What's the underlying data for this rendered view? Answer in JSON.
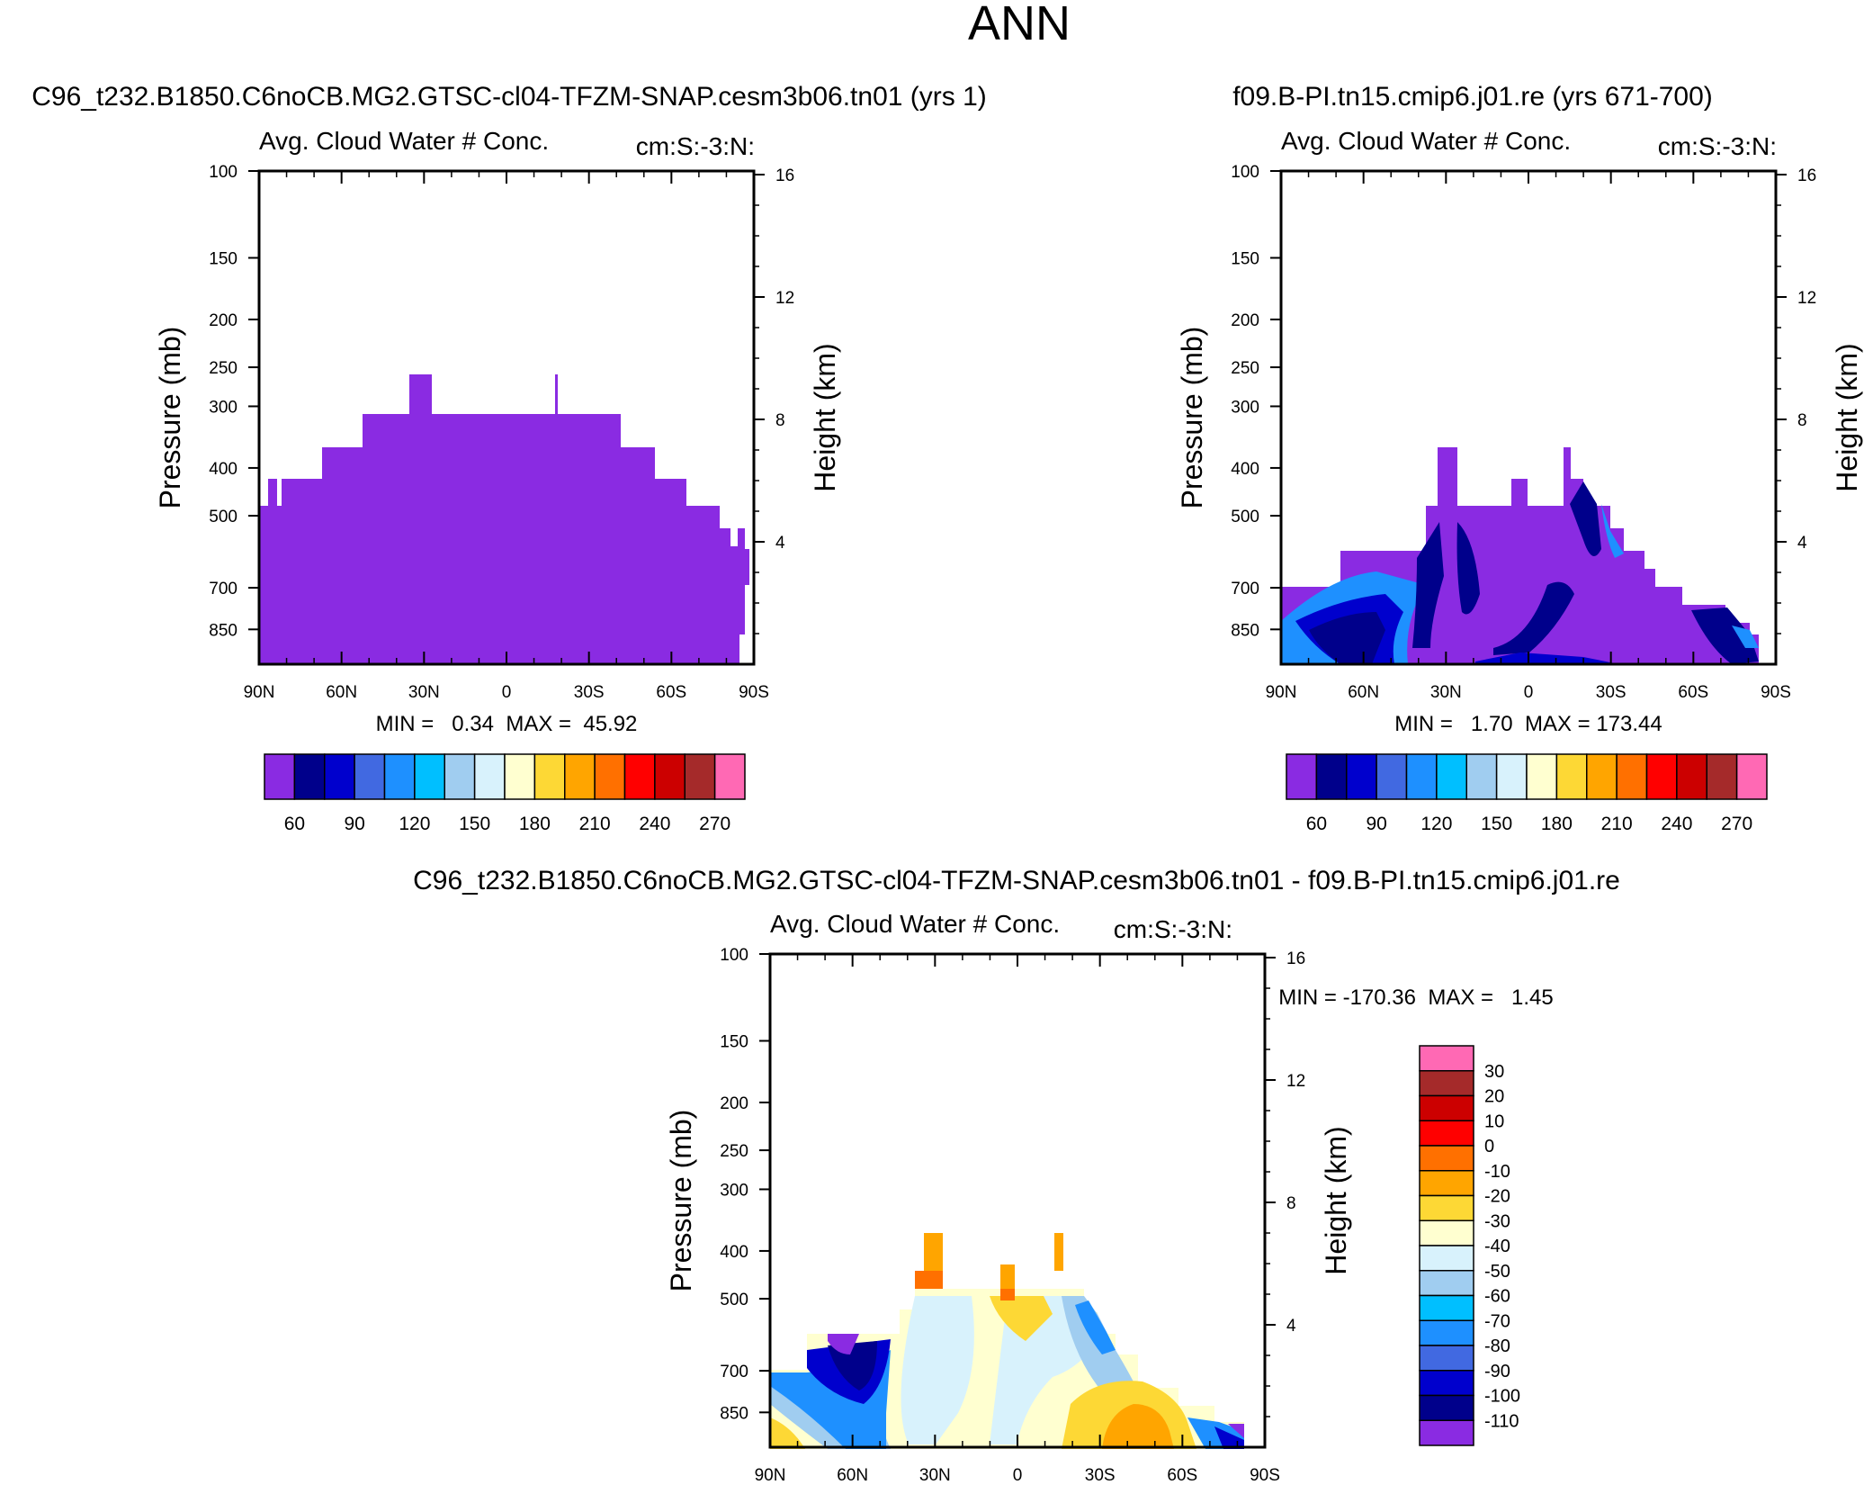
{
  "title": "ANN",
  "chart_data": [
    {
      "type": "heatmap",
      "case": "C96_t232.B1850.C6noCB.MG2.GTSC-cl04-TFZM-SNAP.cesm3b06.tn01 (yrs 1)",
      "variable": "Avg. Cloud Water # Conc.",
      "units": "cm:S:-3:N:",
      "ylabel": "Pressure (mb)",
      "ylabel_right": "Height (km)",
      "x_ticks": [
        "90N",
        "60N",
        "30N",
        "0",
        "30S",
        "60S",
        "90S"
      ],
      "x_values": [
        90,
        60,
        30,
        0,
        -30,
        -60,
        -90
      ],
      "y_ticks": [
        "100",
        "150",
        "200",
        "250",
        "300",
        "400",
        "500",
        "700",
        "850"
      ],
      "y_values": [
        100,
        150,
        200,
        250,
        300,
        400,
        500,
        700,
        850
      ],
      "ylim": [
        100,
        1000
      ],
      "height_ticks": [
        "16",
        "12",
        "8",
        "4"
      ],
      "height_values": [
        16,
        12,
        8,
        4
      ],
      "min_label": "MIN =   0.34  MAX =  45.92",
      "min": 0.34,
      "max": 45.92,
      "colorbar_labels": [
        "60",
        "90",
        "120",
        "150",
        "180",
        "210",
        "240",
        "270"
      ],
      "colorbar_colors": [
        "#8a2be2",
        "#00008b",
        "#0000cd",
        "#4169e1",
        "#1e90ff",
        "#00bfff",
        "#a0cdf0",
        "#d8f2fc",
        "#ffffd0",
        "#fdd835",
        "#ffa500",
        "#ff7000",
        "#ff0000",
        "#cc0000",
        "#a52a2a",
        "#ff69b4"
      ]
    },
    {
      "type": "heatmap",
      "case": "f09.B-PI.tn15.cmip6.j01.re (yrs 671-700)",
      "variable": "Avg. Cloud Water # Conc.",
      "units": "cm:S:-3:N:",
      "ylabel": "Pressure (mb)",
      "ylabel_right": "Height (km)",
      "x_ticks": [
        "90N",
        "60N",
        "30N",
        "0",
        "30S",
        "60S",
        "90S"
      ],
      "x_values": [
        90,
        60,
        30,
        0,
        -30,
        -60,
        -90
      ],
      "y_ticks": [
        "100",
        "150",
        "200",
        "250",
        "300",
        "400",
        "500",
        "700",
        "850"
      ],
      "y_values": [
        100,
        150,
        200,
        250,
        300,
        400,
        500,
        700,
        850
      ],
      "ylim": [
        100,
        1000
      ],
      "height_ticks": [
        "16",
        "12",
        "8",
        "4"
      ],
      "height_values": [
        16,
        12,
        8,
        4
      ],
      "min_label": "MIN =   1.70  MAX = 173.44",
      "min": 1.7,
      "max": 173.44,
      "colorbar_labels": [
        "60",
        "90",
        "120",
        "150",
        "180",
        "210",
        "240",
        "270"
      ],
      "colorbar_colors": [
        "#8a2be2",
        "#00008b",
        "#0000cd",
        "#4169e1",
        "#1e90ff",
        "#00bfff",
        "#a0cdf0",
        "#d8f2fc",
        "#ffffd0",
        "#fdd835",
        "#ffa500",
        "#ff7000",
        "#ff0000",
        "#cc0000",
        "#a52a2a",
        "#ff69b4"
      ]
    },
    {
      "type": "heatmap",
      "case": "C96_t232.B1850.C6noCB.MG2.GTSC-cl04-TFZM-SNAP.cesm3b06.tn01 - f09.B-PI.tn15.cmip6.j01.re",
      "variable": "Avg. Cloud Water # Conc.",
      "units": "cm:S:-3:N:",
      "ylabel": "Pressure (mb)",
      "ylabel_right": "Height (km)",
      "x_ticks": [
        "90N",
        "60N",
        "30N",
        "0",
        "30S",
        "60S",
        "90S"
      ],
      "x_values": [
        90,
        60,
        30,
        0,
        -30,
        -60,
        -90
      ],
      "y_ticks": [
        "100",
        "150",
        "200",
        "250",
        "300",
        "400",
        "500",
        "700",
        "850"
      ],
      "y_values": [
        100,
        150,
        200,
        250,
        300,
        400,
        500,
        700,
        850
      ],
      "ylim": [
        100,
        1000
      ],
      "height_ticks": [
        "16",
        "12",
        "8",
        "4"
      ],
      "height_values": [
        16,
        12,
        8,
        4
      ],
      "min_label": "MIN = -170.36  MAX =   1.45",
      "min": -170.36,
      "max": 1.45,
      "colorbar_labels": [
        "30",
        "20",
        "10",
        "0",
        "-10",
        "-20",
        "-30",
        "-40",
        "-50",
        "-60",
        "-70",
        "-80",
        "-90",
        "-100",
        "-110"
      ],
      "colorbar_colors": [
        "#ff69b4",
        "#a52a2a",
        "#cc0000",
        "#ff0000",
        "#ff7000",
        "#ffa500",
        "#fdd835",
        "#ffffd0",
        "#d8f2fc",
        "#a0cdf0",
        "#00bfff",
        "#1e90ff",
        "#4169e1",
        "#0000cd",
        "#00008b",
        "#8a2be2"
      ]
    }
  ]
}
